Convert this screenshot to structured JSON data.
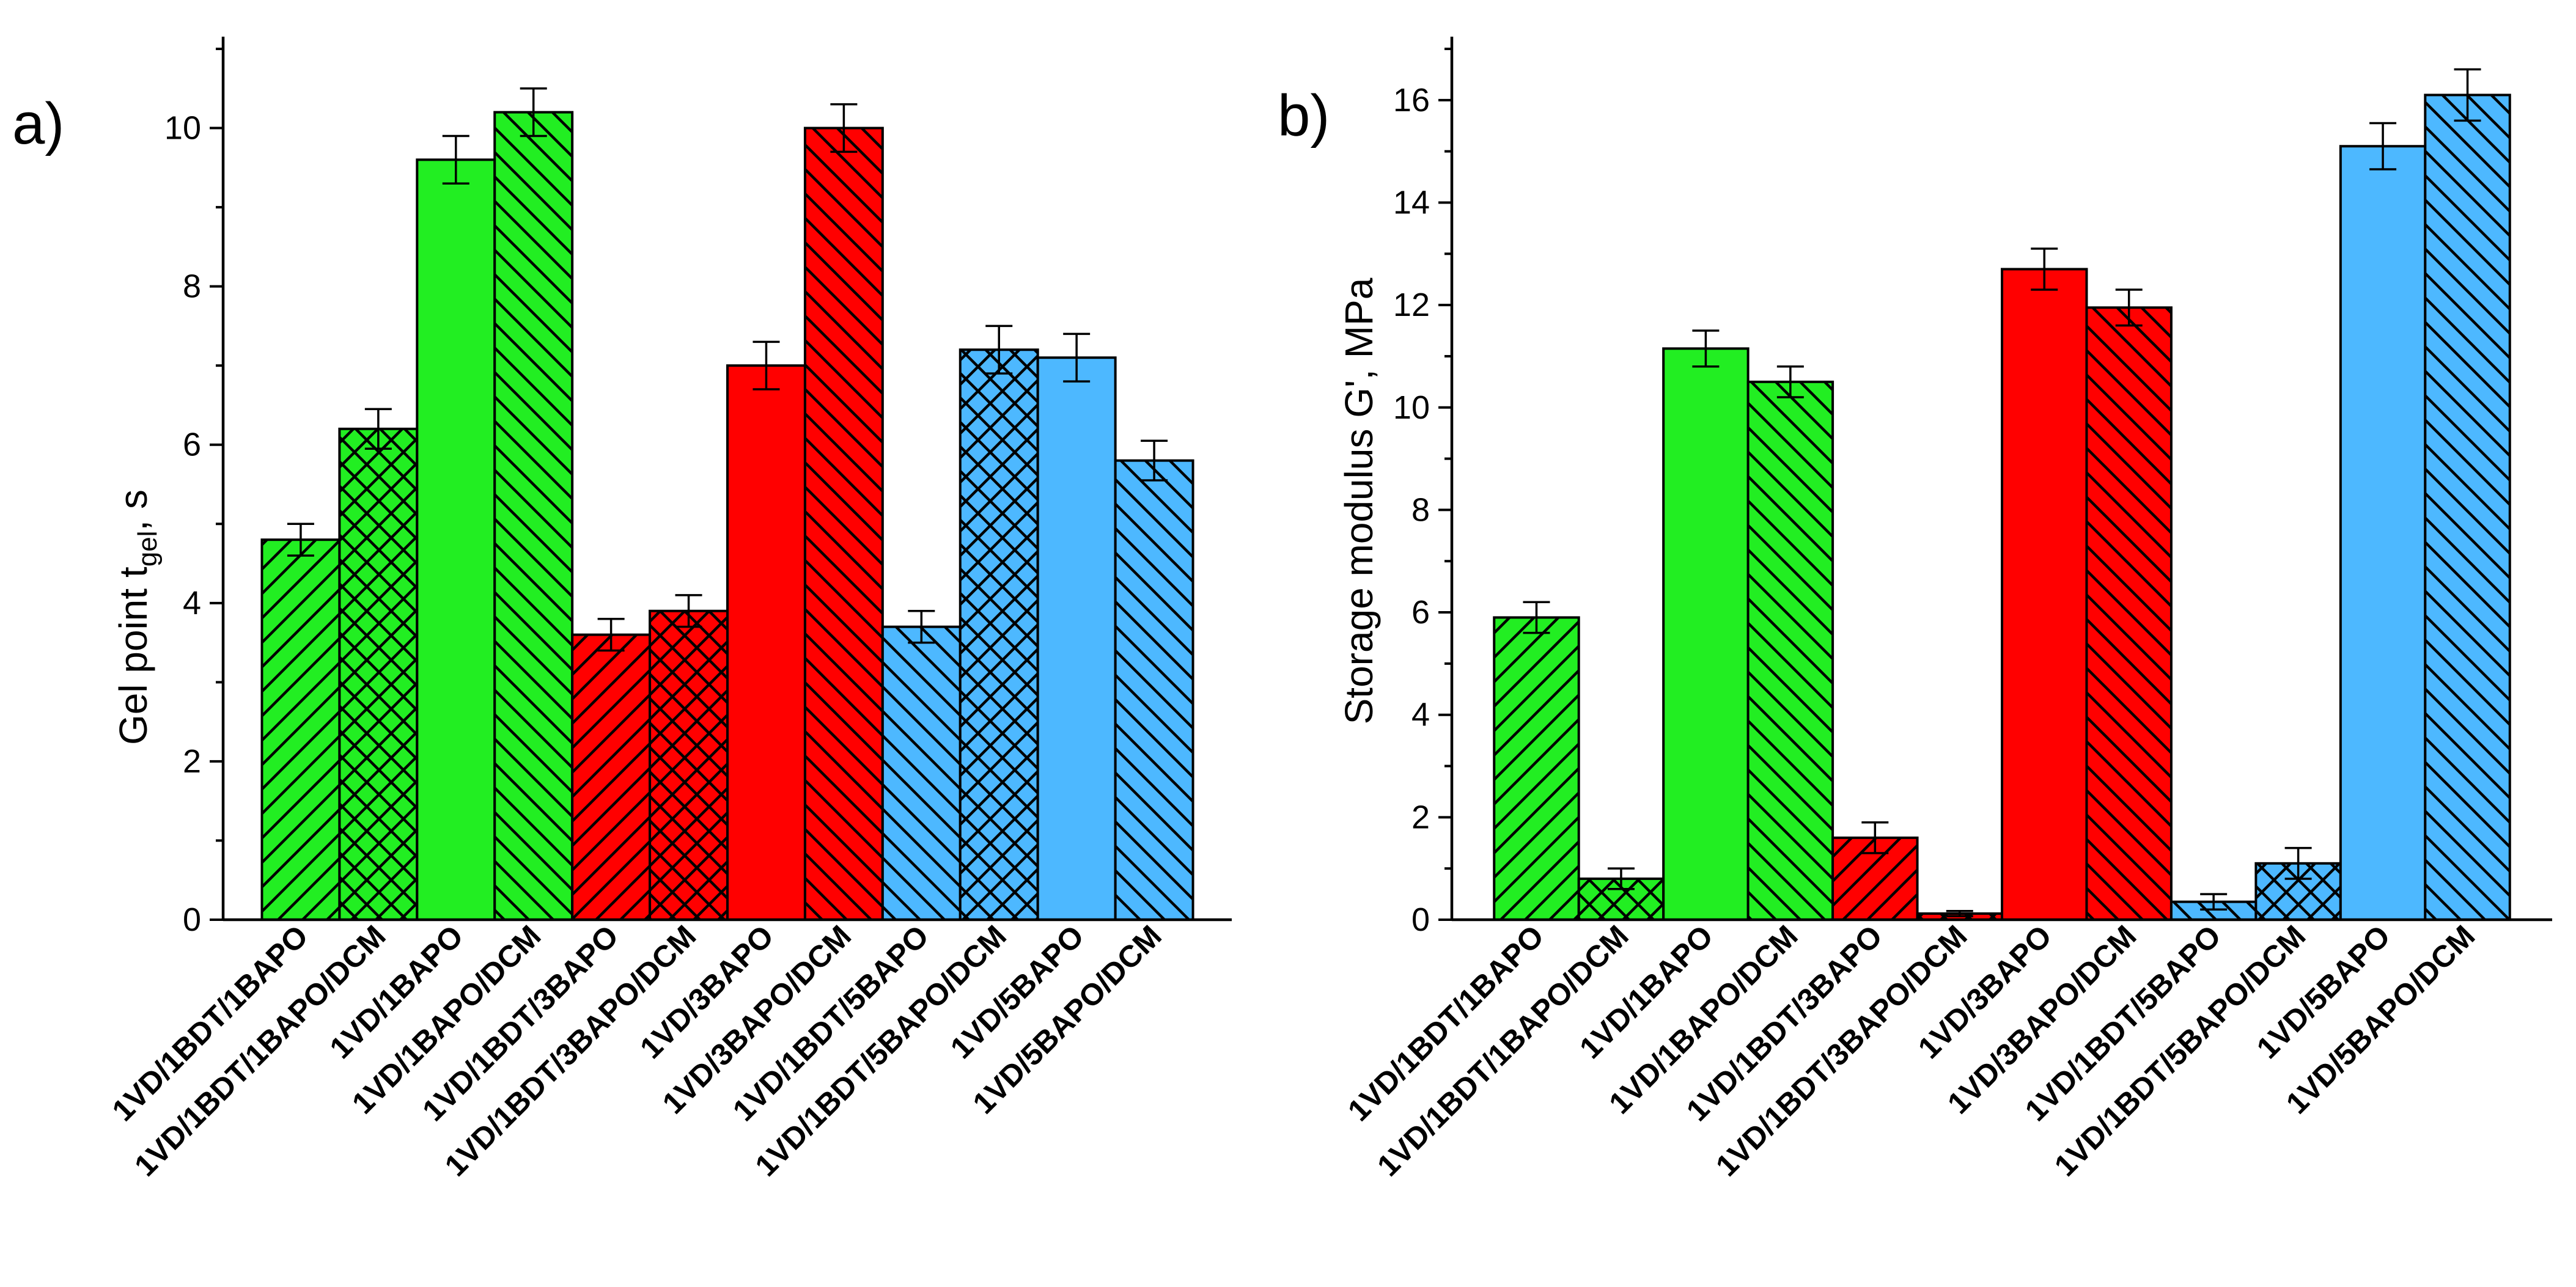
{
  "figure": {
    "colors": {
      "green": "#22ee22",
      "red": "#ff0000",
      "blue": "#4db8ff",
      "outline": "#000000"
    },
    "categories": [
      "1VD/1BDT/1BAPO",
      "1VD/1BDT/1BAPO/DCM",
      "1VD/1BAPO",
      "1VD/1BAPO/DCM",
      "1VD/1BDT/3BAPO",
      "1VD/1BDT/3BAPO/DCM",
      "1VD/3BAPO",
      "1VD/3BAPO/DCM",
      "1VD/1BDT/5BAPO",
      "1VD/1BDT/5BAPO/DCM",
      "1VD/5BAPO",
      "1VD/5BAPO/DCM"
    ],
    "bar_colors": [
      "green",
      "green",
      "green",
      "green",
      "red",
      "red",
      "red",
      "red",
      "blue",
      "blue",
      "blue",
      "blue"
    ],
    "bar_patterns": [
      "diag-up",
      "crosshatch",
      "solid",
      "diag-down",
      "diag-up",
      "crosshatch",
      "solid",
      "diag-down",
      "diag-down",
      "crosshatch",
      "solid",
      "diag-down"
    ]
  },
  "chart_data": [
    {
      "type": "bar",
      "panel_label": "a)",
      "title": "",
      "xlabel": "",
      "ylabel_main": "Gel point t",
      "ylabel_sub": "gel",
      "ylabel_suffix": ", s",
      "ylim": [
        0,
        11
      ],
      "yticks": [
        0,
        2,
        4,
        6,
        8,
        10
      ],
      "values": [
        4.8,
        6.2,
        9.6,
        10.2,
        3.6,
        3.9,
        7.0,
        10.0,
        3.7,
        7.2,
        7.1,
        5.8
      ],
      "errors": [
        0.2,
        0.25,
        0.3,
        0.3,
        0.2,
        0.2,
        0.3,
        0.3,
        0.2,
        0.3,
        0.3,
        0.25
      ]
    },
    {
      "type": "bar",
      "panel_label": "b)",
      "title": "",
      "xlabel": "",
      "ylabel_main": "Storage modulus G', MPa",
      "ylabel_sub": "",
      "ylabel_suffix": "",
      "ylim": [
        0,
        17
      ],
      "yticks": [
        0,
        2,
        4,
        6,
        8,
        10,
        12,
        14,
        16
      ],
      "values": [
        5.9,
        0.8,
        11.15,
        10.5,
        1.6,
        0.12,
        12.7,
        11.95,
        0.35,
        1.1,
        15.1,
        16.1
      ],
      "errors": [
        0.3,
        0.2,
        0.35,
        0.3,
        0.3,
        0.05,
        0.4,
        0.35,
        0.15,
        0.3,
        0.45,
        0.5
      ]
    }
  ]
}
